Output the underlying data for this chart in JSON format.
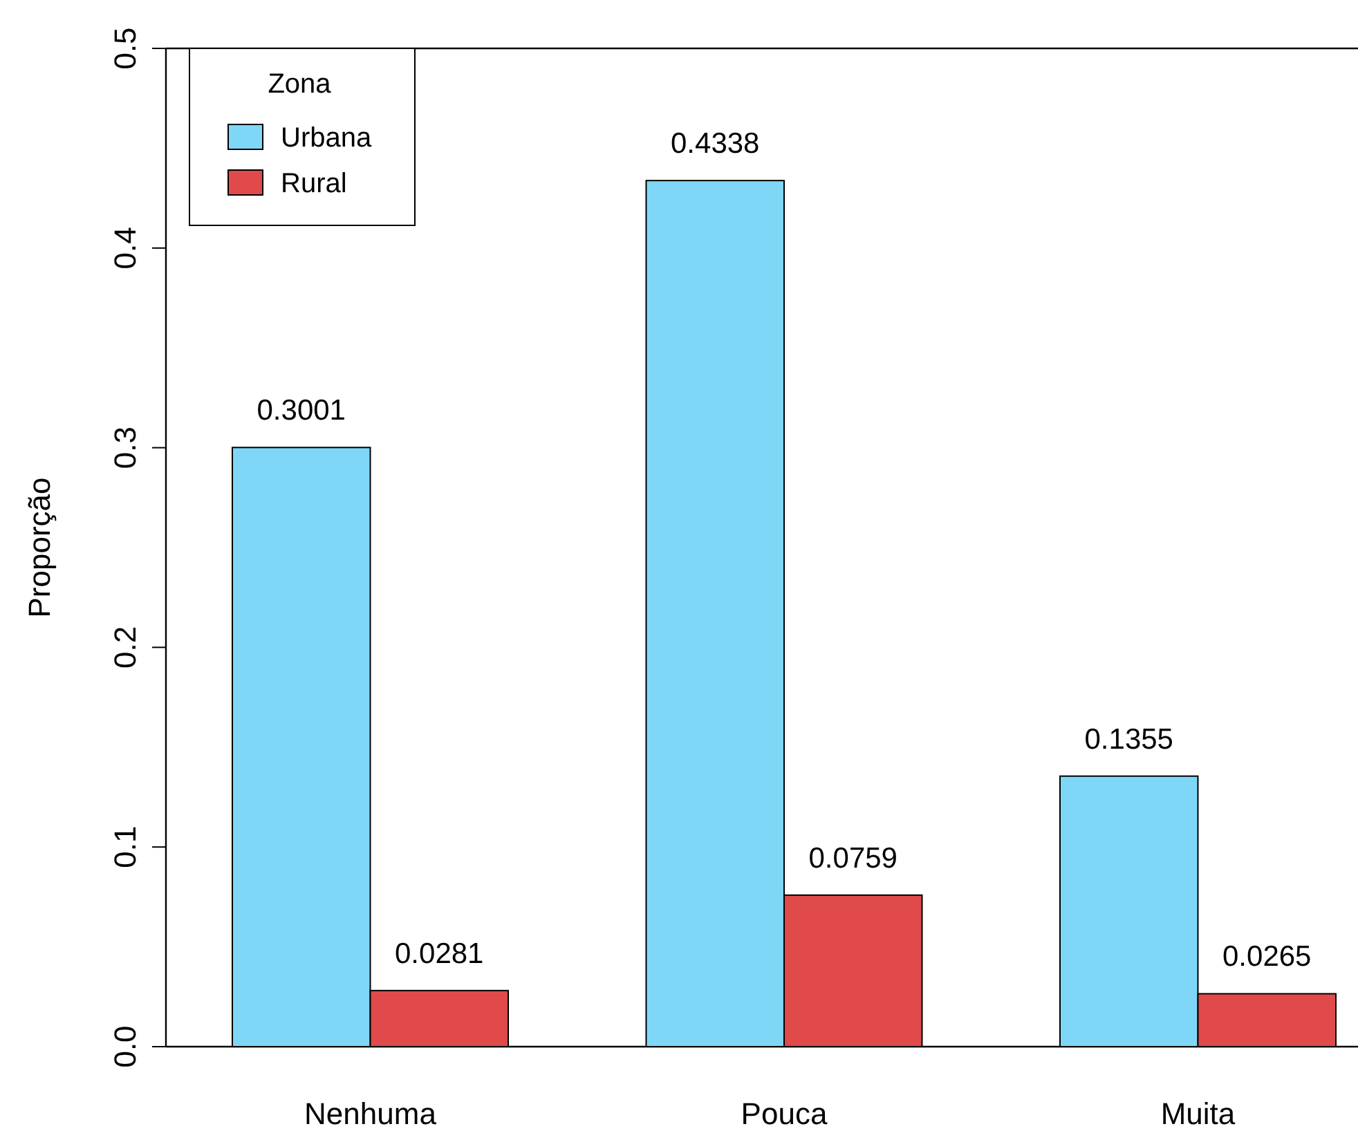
{
  "chart_data": {
    "type": "bar",
    "ylabel": "Proporção",
    "legend_title": "Zona",
    "categories": [
      "Nenhuma",
      "Pouca",
      "Muita"
    ],
    "series": [
      {
        "name": "Urbana",
        "color": "#7fd7f7",
        "values": [
          0.3001,
          0.4338,
          0.1355
        ]
      },
      {
        "name": "Rural",
        "color": "#e04a4a",
        "values": [
          0.0281,
          0.0759,
          0.0265
        ]
      }
    ],
    "ylim": [
      0,
      0.5
    ],
    "yticks": [
      {
        "value": 0,
        "label": "0.0"
      },
      {
        "value": 0.1,
        "label": "0.1"
      },
      {
        "value": 0.2,
        "label": "0.2"
      },
      {
        "value": 0.3,
        "label": "0.3"
      },
      {
        "value": 0.4,
        "label": "0.4"
      },
      {
        "value": 0.5,
        "label": "0.5"
      }
    ],
    "data_labels": true,
    "grid": false,
    "legend": "top left"
  }
}
